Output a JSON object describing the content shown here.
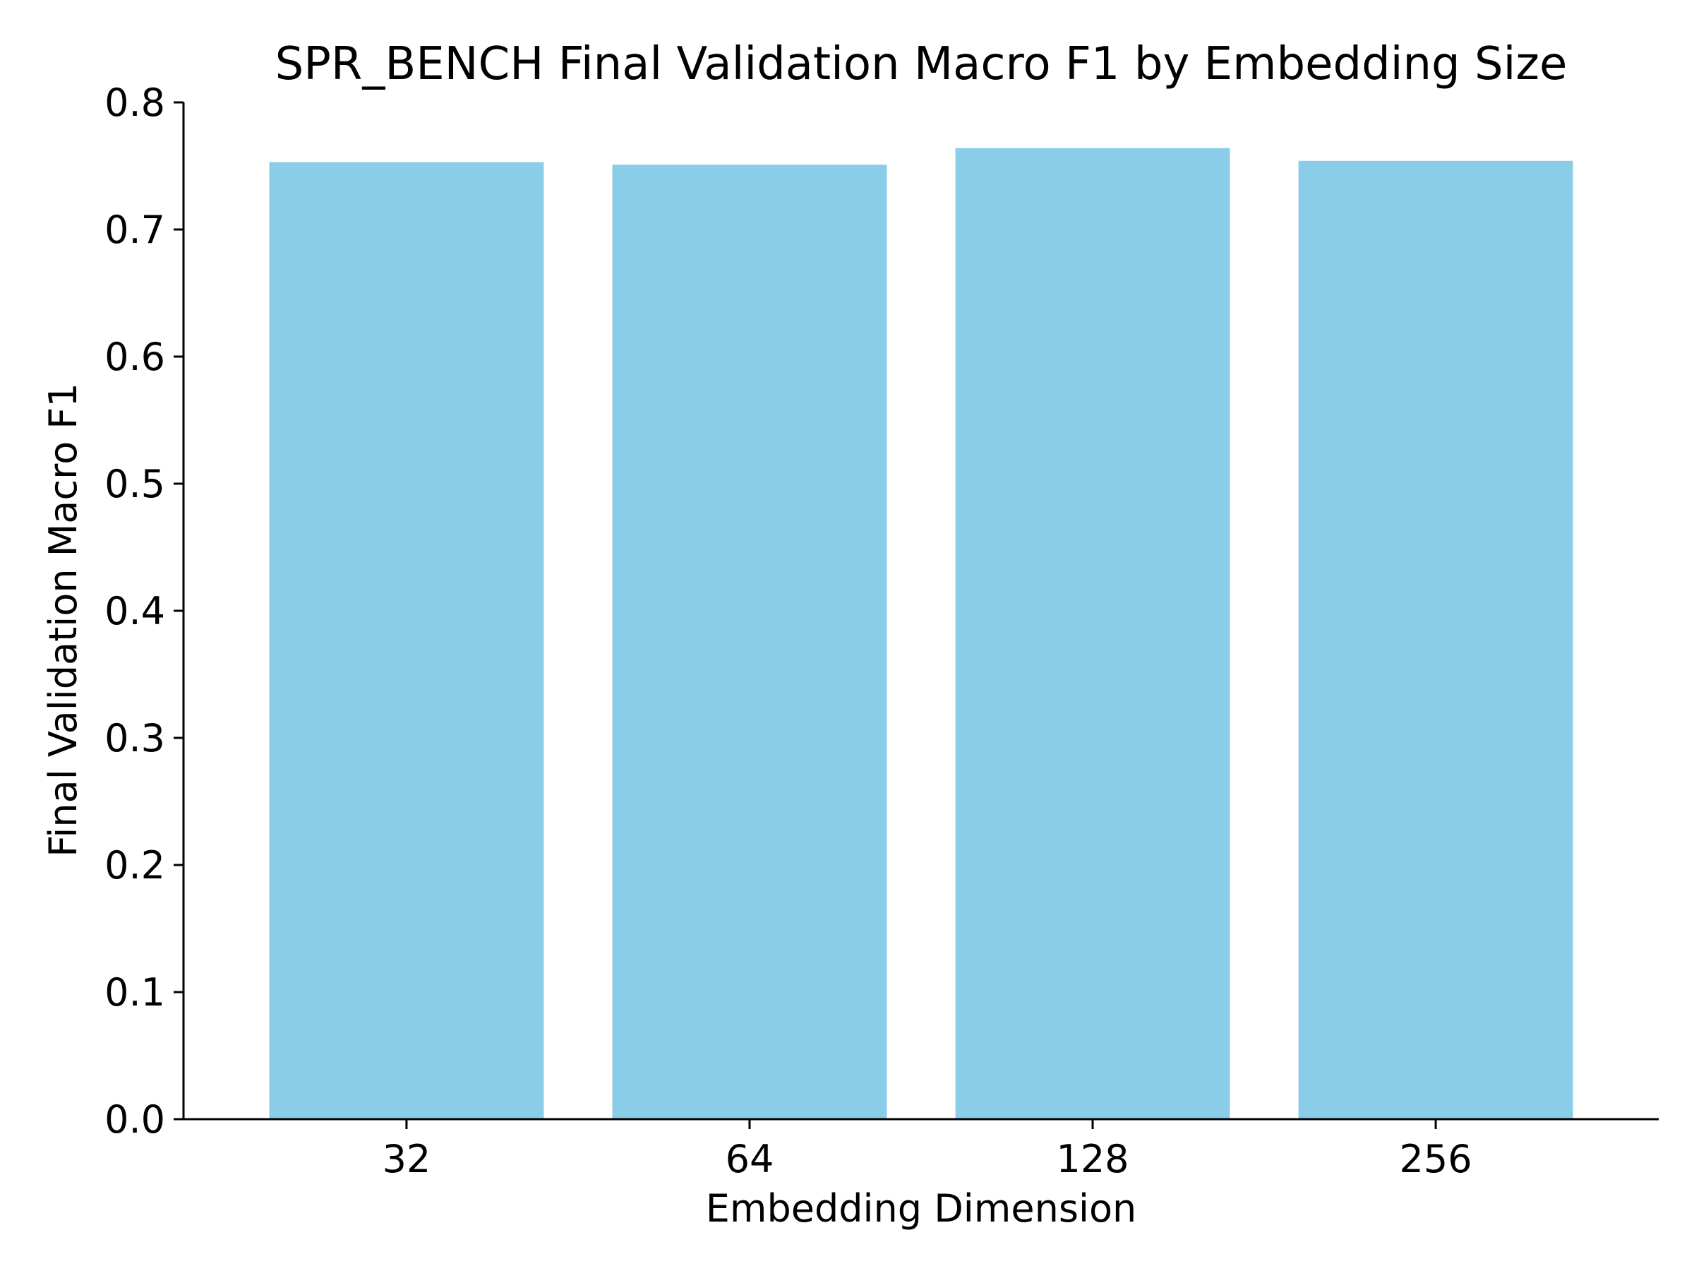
{
  "chart_data": {
    "type": "bar",
    "title": "SPR_BENCH Final Validation Macro F1 by Embedding Size",
    "xlabel": "Embedding Dimension",
    "ylabel": "Final Validation Macro F1",
    "categories": [
      "32",
      "64",
      "128",
      "256"
    ],
    "values": [
      0.753,
      0.751,
      0.764,
      0.754
    ],
    "ylim": [
      0,
      0.8
    ],
    "yticks": [
      "0.0",
      "0.1",
      "0.2",
      "0.3",
      "0.4",
      "0.5",
      "0.6",
      "0.7",
      "0.8"
    ],
    "grid": false,
    "bar_color": "#89CDE8",
    "axis_color": "#000000"
  }
}
